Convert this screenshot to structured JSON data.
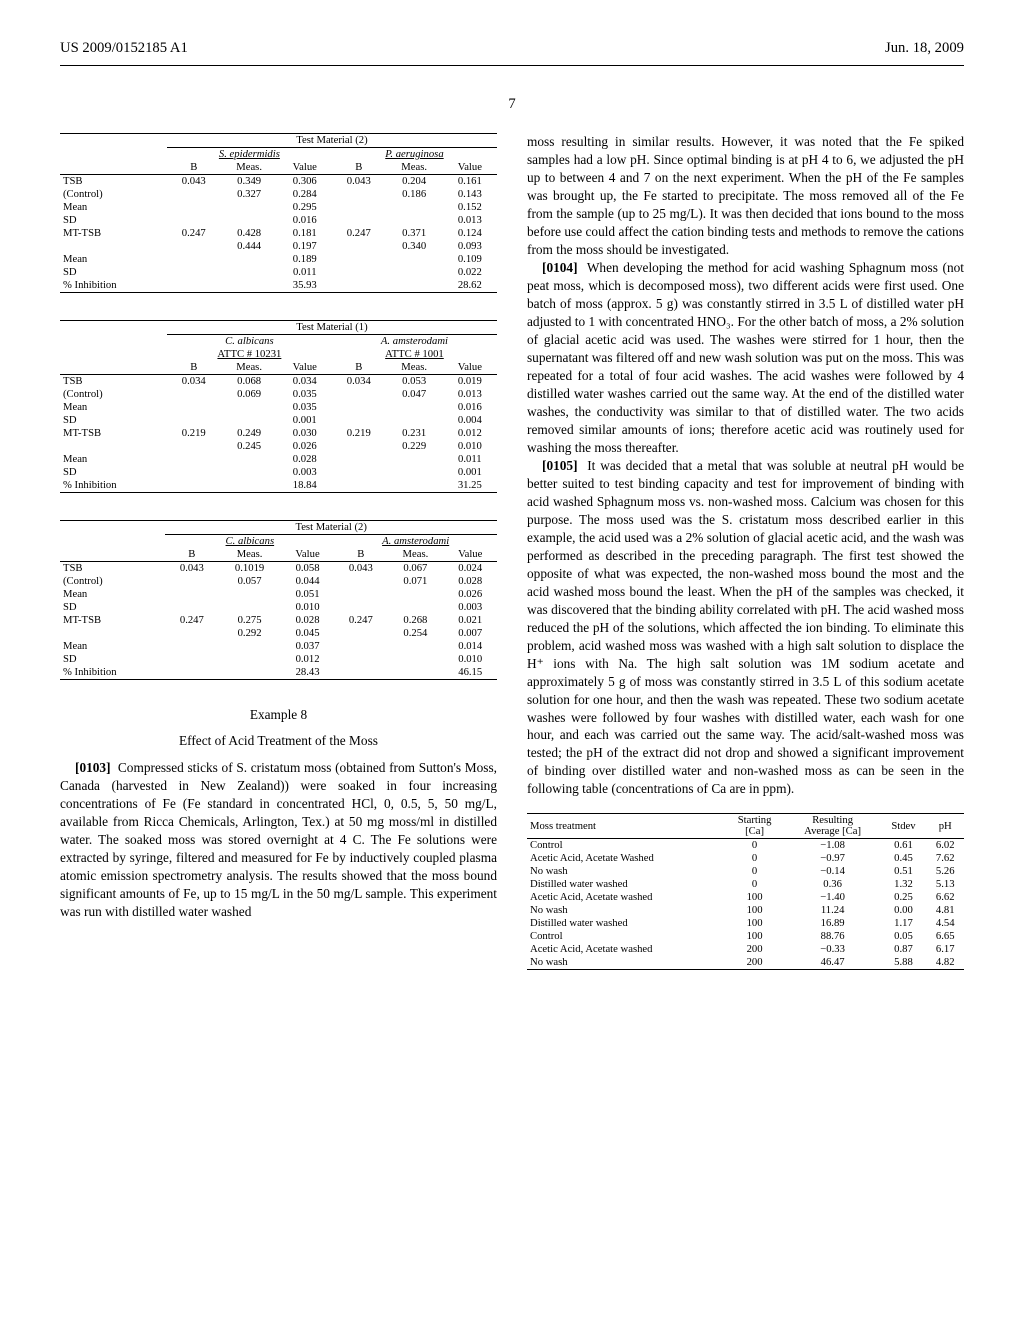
{
  "header": {
    "left": "US 2009/0152185 A1",
    "right": "Jun. 18, 2009"
  },
  "page_number": "7",
  "table1": {
    "title": "Test Material (2)",
    "group1": "S. epidermidis",
    "group2": "P. aeruginosa",
    "col_b": "B",
    "col_meas": "Meas.",
    "col_value": "Value",
    "rows": [
      {
        "label": "TSB",
        "b1": "0.043",
        "m1": "0.349",
        "v1": "0.306",
        "b2": "0.043",
        "m2": "0.204",
        "v2": "0.161"
      },
      {
        "label": "(Control)",
        "b1": "",
        "m1": "0.327",
        "v1": "0.284",
        "b2": "",
        "m2": "0.186",
        "v2": "0.143"
      },
      {
        "label": "Mean",
        "b1": "",
        "m1": "",
        "v1": "0.295",
        "b2": "",
        "m2": "",
        "v2": "0.152"
      },
      {
        "label": "SD",
        "b1": "",
        "m1": "",
        "v1": "0.016",
        "b2": "",
        "m2": "",
        "v2": "0.013"
      },
      {
        "label": "MT-TSB",
        "b1": "0.247",
        "m1": "0.428",
        "v1": "0.181",
        "b2": "0.247",
        "m2": "0.371",
        "v2": "0.124"
      },
      {
        "label": "",
        "b1": "",
        "m1": "0.444",
        "v1": "0.197",
        "b2": "",
        "m2": "0.340",
        "v2": "0.093"
      },
      {
        "label": "Mean",
        "b1": "",
        "m1": "",
        "v1": "0.189",
        "b2": "",
        "m2": "",
        "v2": "0.109"
      },
      {
        "label": "SD",
        "b1": "",
        "m1": "",
        "v1": "0.011",
        "b2": "",
        "m2": "",
        "v2": "0.022"
      },
      {
        "label": "% Inhibition",
        "b1": "",
        "m1": "",
        "v1": "35.93",
        "b2": "",
        "m2": "",
        "v2": "28.62"
      }
    ]
  },
  "table2": {
    "title": "Test Material (1)",
    "group1a": "C. albicans",
    "group1b": "ATTC # 10231",
    "group2a": "A. amsterodami",
    "group2b": "ATTC # 1001",
    "rows": [
      {
        "label": "TSB",
        "b1": "0.034",
        "m1": "0.068",
        "v1": "0.034",
        "b2": "0.034",
        "m2": "0.053",
        "v2": "0.019"
      },
      {
        "label": "(Control)",
        "b1": "",
        "m1": "0.069",
        "v1": "0.035",
        "b2": "",
        "m2": "0.047",
        "v2": "0.013"
      },
      {
        "label": "Mean",
        "b1": "",
        "m1": "",
        "v1": "0.035",
        "b2": "",
        "m2": "",
        "v2": "0.016"
      },
      {
        "label": "SD",
        "b1": "",
        "m1": "",
        "v1": "0.001",
        "b2": "",
        "m2": "",
        "v2": "0.004"
      },
      {
        "label": "MT-TSB",
        "b1": "0.219",
        "m1": "0.249",
        "v1": "0.030",
        "b2": "0.219",
        "m2": "0.231",
        "v2": "0.012"
      },
      {
        "label": "",
        "b1": "",
        "m1": "0.245",
        "v1": "0.026",
        "b2": "",
        "m2": "0.229",
        "v2": "0.010"
      },
      {
        "label": "Mean",
        "b1": "",
        "m1": "",
        "v1": "0.028",
        "b2": "",
        "m2": "",
        "v2": "0.011"
      },
      {
        "label": "SD",
        "b1": "",
        "m1": "",
        "v1": "0.003",
        "b2": "",
        "m2": "",
        "v2": "0.001"
      },
      {
        "label": "% Inhibition",
        "b1": "",
        "m1": "",
        "v1": "18.84",
        "b2": "",
        "m2": "",
        "v2": "31.25"
      }
    ]
  },
  "table3": {
    "title": "Test Material (2)",
    "group1": "C. albicans",
    "group2": "A. amsterodami",
    "rows": [
      {
        "label": "TSB",
        "b1": "0.043",
        "m1": "0.1019",
        "v1": "0.058",
        "b2": "0.043",
        "m2": "0.067",
        "v2": "0.024"
      },
      {
        "label": "(Control)",
        "b1": "",
        "m1": "0.057",
        "v1": "0.044",
        "b2": "",
        "m2": "0.071",
        "v2": "0.028"
      },
      {
        "label": "Mean",
        "b1": "",
        "m1": "",
        "v1": "0.051",
        "b2": "",
        "m2": "",
        "v2": "0.026"
      },
      {
        "label": "SD",
        "b1": "",
        "m1": "",
        "v1": "0.010",
        "b2": "",
        "m2": "",
        "v2": "0.003"
      },
      {
        "label": "MT-TSB",
        "b1": "0.247",
        "m1": "0.275",
        "v1": "0.028",
        "b2": "0.247",
        "m2": "0.268",
        "v2": "0.021"
      },
      {
        "label": "",
        "b1": "",
        "m1": "0.292",
        "v1": "0.045",
        "b2": "",
        "m2": "0.254",
        "v2": "0.007"
      },
      {
        "label": "Mean",
        "b1": "",
        "m1": "",
        "v1": "0.037",
        "b2": "",
        "m2": "",
        "v2": "0.014"
      },
      {
        "label": "SD",
        "b1": "",
        "m1": "",
        "v1": "0.012",
        "b2": "",
        "m2": "",
        "v2": "0.010"
      },
      {
        "label": "% Inhibition",
        "b1": "",
        "m1": "",
        "v1": "28.43",
        "b2": "",
        "m2": "",
        "v2": "46.15"
      }
    ]
  },
  "example": {
    "number": "Example 8",
    "title": "Effect of Acid Treatment of the Moss"
  },
  "para103": {
    "num": "[0103]",
    "text": "Compressed sticks of S. cristatum moss (obtained from Sutton's Moss, Canada (harvested in New Zealand)) were soaked in four increasing concentrations of Fe (Fe standard in concentrated HCl, 0, 0.5, 5, 50 mg/L, available from Ricca Chemicals, Arlington, Tex.) at 50 mg moss/ml in distilled water. The soaked moss was stored overnight at 4 C. The Fe solutions were extracted by syringe, filtered and measured for Fe by inductively coupled plasma atomic emission spectrometry analysis. The results showed that the moss bound significant amounts of Fe, up to 15 mg/L in the 50 mg/L sample. This experiment was run with distilled water washed"
  },
  "para_cont": "moss resulting in similar results. However, it was noted that the Fe spiked samples had a low pH. Since optimal binding is at pH 4 to 6, we adjusted the pH up to between 4 and 7 on the next experiment. When the pH of the Fe samples was brought up, the Fe started to precipitate. The moss removed all of the Fe from the sample (up to 25 mg/L). It was then decided that ions bound to the moss before use could affect the cation binding tests and methods to remove the cations from the moss should be investigated.",
  "para104": {
    "num": "[0104]",
    "text": "When developing the method for acid washing Sphagnum moss (not peat moss, which is decomposed moss), two different acids were first used. One batch of moss (approx. 5 g) was constantly stirred in 3.5 L of distilled water pH adjusted to 1 with concentrated HNO₃. For the other batch of moss, a 2% solution of glacial acetic acid was used. The washes were stirred for 1 hour, then the supernatant was filtered off and new wash solution was put on the moss. This was repeated for a total of four acid washes. The acid washes were followed by 4 distilled water washes carried out the same way. At the end of the distilled water washes, the conductivity was similar to that of distilled water. The two acids removed similar amounts of ions; therefore acetic acid was routinely used for washing the moss thereafter."
  },
  "para105": {
    "num": "[0105]",
    "text": "It was decided that a metal that was soluble at neutral pH would be better suited to test binding capacity and test for improvement of binding with acid washed Sphagnum moss vs. non-washed moss. Calcium was chosen for this purpose. The moss used was the S. cristatum moss described earlier in this example, the acid used was a 2% solution of glacial acetic acid, and the wash was performed as described in the preceding paragraph. The first test showed the opposite of what was expected, the non-washed moss bound the most and the acid washed moss bound the least. When the pH of the samples was checked, it was discovered that the binding ability correlated with pH. The acid washed moss reduced the pH of the solutions, which affected the ion binding. To eliminate this problem, acid washed moss was washed with a high salt solution to displace the H⁺ ions with Na. The high salt solution was 1M sodium acetate and approximately 5 g of moss was constantly stirred in 3.5 L of this sodium acetate solution for one hour, and then the wash was repeated. These two sodium acetate washes were followed by four washes with distilled water, each wash for one hour, and each was carried out the same way. The acid/salt-washed moss was tested; the pH of the extract did not drop and showed a significant improvement of binding over distilled water and non-washed moss as can be seen in the following table (concentrations of Ca are in ppm)."
  },
  "table4": {
    "h1": "Moss treatment",
    "h2": "Starting\n[Ca]",
    "h3": "Resulting\nAverage [Ca]",
    "h4": "Stdev",
    "h5": "pH",
    "rows": [
      {
        "c1": "Control",
        "c2": "0",
        "c3": "−1.08",
        "c4": "0.61",
        "c5": "6.02"
      },
      {
        "c1": "Acetic Acid, Acetate Washed",
        "c2": "0",
        "c3": "−0.97",
        "c4": "0.45",
        "c5": "7.62"
      },
      {
        "c1": "No wash",
        "c2": "0",
        "c3": "−0.14",
        "c4": "0.51",
        "c5": "5.26"
      },
      {
        "c1": "Distilled water washed",
        "c2": "0",
        "c3": "0.36",
        "c4": "1.32",
        "c5": "5.13"
      },
      {
        "c1": "Acetic Acid, Acetate washed",
        "c2": "100",
        "c3": "−1.40",
        "c4": "0.25",
        "c5": "6.62"
      },
      {
        "c1": "No wash",
        "c2": "100",
        "c3": "11.24",
        "c4": "0.00",
        "c5": "4.81"
      },
      {
        "c1": "Distilled water washed",
        "c2": "100",
        "c3": "16.89",
        "c4": "1.17",
        "c5": "4.54"
      },
      {
        "c1": "Control",
        "c2": "100",
        "c3": "88.76",
        "c4": "0.05",
        "c5": "6.65"
      },
      {
        "c1": "Acetic Acid, Acetate washed",
        "c2": "200",
        "c3": "−0.33",
        "c4": "0.87",
        "c5": "6.17"
      },
      {
        "c1": "No wash",
        "c2": "200",
        "c3": "46.47",
        "c4": "5.88",
        "c5": "4.82"
      }
    ]
  }
}
